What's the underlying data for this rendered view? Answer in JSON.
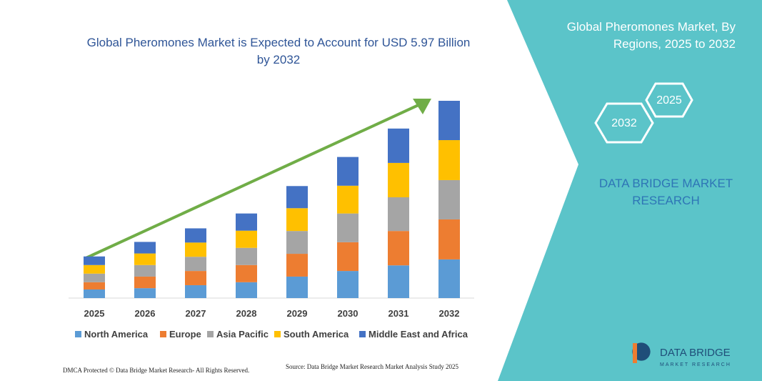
{
  "chart_data": {
    "type": "bar",
    "stacked": true,
    "title": "Global Pheromones Market is Expected to Account for USD 5.97 Billion by 2032",
    "categories": [
      "2025",
      "2026",
      "2027",
      "2028",
      "2029",
      "2030",
      "2031",
      "2032"
    ],
    "series": [
      {
        "name": "North America",
        "color": "#5b9bd5",
        "values": [
          0.26,
          0.3,
          0.39,
          0.48,
          0.65,
          0.82,
          0.99,
          1.17
        ]
      },
      {
        "name": "Europe",
        "color": "#ed7d31",
        "values": [
          0.22,
          0.35,
          0.43,
          0.52,
          0.69,
          0.87,
          1.04,
          1.21
        ]
      },
      {
        "name": "Asia Pacific",
        "color": "#a5a5a5",
        "values": [
          0.26,
          0.35,
          0.43,
          0.52,
          0.69,
          0.87,
          1.02,
          1.19
        ]
      },
      {
        "name": "South America",
        "color": "#ffc000",
        "values": [
          0.26,
          0.35,
          0.43,
          0.52,
          0.69,
          0.84,
          1.04,
          1.21
        ]
      },
      {
        "name": "Middle East and Africa",
        "color": "#4472c4",
        "values": [
          0.26,
          0.35,
          0.43,
          0.52,
          0.67,
          0.87,
          1.04,
          1.19
        ]
      }
    ],
    "legend": "bottom"
  },
  "panel": {
    "title": "Global Pheromones Market, By Regions, 2025 to 2032",
    "hexagons": [
      "2025",
      "2032"
    ],
    "brand": "DATA BRIDGE MARKET RESEARCH"
  },
  "logo": {
    "name": "DATA BRIDGE",
    "tagline": "MARKET RESEARCH"
  },
  "footer": {
    "copyright": "DMCA Protected © Data Bridge Market Research- All Rights Reserved.",
    "source": "Source: Data Bridge Market Research Market Analysis Study 2025"
  }
}
